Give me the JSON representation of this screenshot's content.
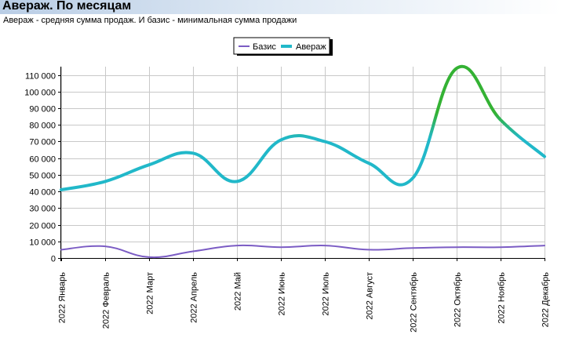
{
  "page": {
    "title": "Авераж. По месяцам",
    "subtitle": "Авераж - средняя сумма продаж. И базис - минимальная сумма продажи"
  },
  "chart_data": {
    "type": "line",
    "title": "",
    "xlabel": "",
    "ylabel": "",
    "categories": [
      "2022 Январь",
      "2022 Февраль",
      "2022 Март",
      "2022 Апрель",
      "2022 Май",
      "2022 Июнь",
      "2022 Июль",
      "2022 Август",
      "2022 Сентябрь",
      "2022 Октябрь",
      "2022 Ноябрь",
      "2022 Декабрь"
    ],
    "ylim": [
      0,
      115000
    ],
    "yticks": [
      0,
      10000,
      20000,
      30000,
      40000,
      50000,
      60000,
      70000,
      80000,
      90000,
      100000,
      110000
    ],
    "ytick_labels": [
      "0",
      "10 000",
      "20 000",
      "30 000",
      "40 000",
      "50 000",
      "60 000",
      "70 000",
      "80 000",
      "90 000",
      "100 000",
      "110 000"
    ],
    "grid": true,
    "legend_position": "top-center",
    "series": [
      {
        "name": "Базис",
        "color": "#7b5cc4",
        "values": [
          5000,
          7000,
          500,
          4000,
          7500,
          6500,
          7500,
          5000,
          6000,
          6500,
          6500,
          7500
        ]
      },
      {
        "name": "Авераж",
        "color": "#21b8c9",
        "highlight_color": "#34b234",
        "values": [
          41000,
          46000,
          56000,
          63000,
          46000,
          71000,
          70000,
          57000,
          48000,
          114000,
          83000,
          61000
        ]
      }
    ]
  }
}
